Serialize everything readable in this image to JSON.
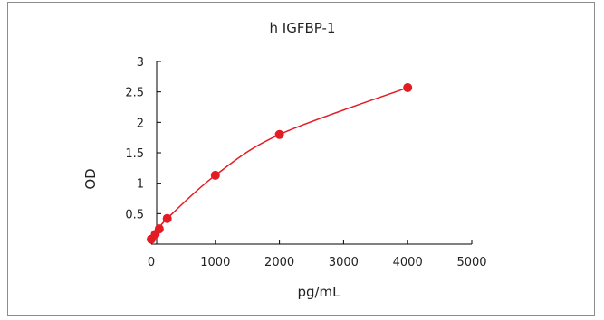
{
  "chart_data": {
    "type": "scatter",
    "title": "h IGFBP-1",
    "xlabel": "pg/mL",
    "ylabel": "OD",
    "xlim": [
      0,
      5000
    ],
    "ylim": [
      0,
      3
    ],
    "x_ticks": [
      "0",
      "1000",
      "2000",
      "3000",
      "4000",
      "5000"
    ],
    "y_ticks": [
      "0.5",
      "1",
      "1.5",
      "2",
      "2.5",
      "3"
    ],
    "series": [
      {
        "x": [
          0,
          62.5,
          125,
          250,
          1000,
          2000,
          4000
        ],
        "y": [
          0.08,
          0.16,
          0.25,
          0.42,
          1.13,
          1.8,
          2.57
        ]
      }
    ],
    "marker_color": "#e31b23",
    "curve_color": "#e31b23",
    "fit": "smooth curve through points",
    "grid": false
  }
}
